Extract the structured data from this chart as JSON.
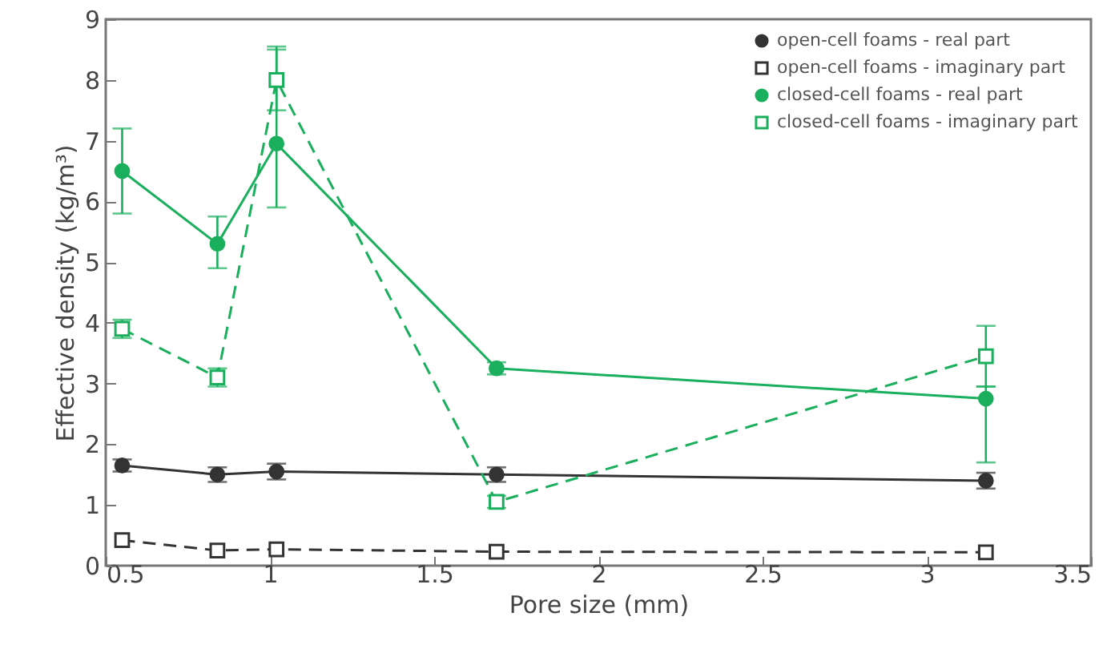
{
  "chart_data": {
    "type": "line",
    "xlabel": "Pore size (mm)",
    "ylabel": "Effective density (kg/m³)",
    "x": [
      0.55,
      0.84,
      1.02,
      1.69,
      3.18
    ],
    "xlim": [
      0.5,
      3.5
    ],
    "xticks": [
      0.5,
      {
        "value": 1,
        "label": "1"
      },
      1.5,
      {
        "value": 2,
        "label": "2"
      },
      2.5,
      {
        "value": 3,
        "label": "3"
      },
      3.5
    ],
    "ylim": [
      0,
      9
    ],
    "yticks": [
      0,
      1,
      2,
      3,
      4,
      5,
      6,
      7,
      8,
      9
    ],
    "grid": false,
    "legend": "top right",
    "series": [
      {
        "name": "open-cell foams - real part",
        "color": "#333333",
        "marker": "circle",
        "line_style": "solid",
        "values": [
          1.65,
          1.5,
          1.55,
          1.5,
          1.4
        ],
        "errors": [
          0.1,
          0.12,
          0.13,
          0.12,
          0.13
        ]
      },
      {
        "name": "open-cell foams - imaginary part",
        "color": "#333333",
        "marker": "square",
        "line_style": "dashed",
        "values": [
          0.42,
          0.25,
          0.27,
          0.23,
          0.22
        ]
      },
      {
        "name": "closed-cell foams - real part",
        "color": "#1aaf5d",
        "marker": "circle",
        "line_style": "solid",
        "values": [
          6.5,
          5.3,
          6.95,
          3.25,
          2.75
        ],
        "errors": [
          [
            5.8,
            7.2
          ],
          [
            4.9,
            5.75
          ],
          [
            5.9,
            8.55
          ],
          [
            3.15,
            3.35
          ],
          [
            1.7,
            2.95
          ]
        ]
      },
      {
        "name": "closed-cell foams - imaginary part",
        "color": "#1aaf5d",
        "marker": "square",
        "line_style": "dashed",
        "values": [
          3.9,
          3.1,
          8.0,
          1.05,
          3.45
        ],
        "errors": [
          0.15,
          0.15,
          0.5,
          0.1,
          0.5
        ]
      }
    ]
  }
}
